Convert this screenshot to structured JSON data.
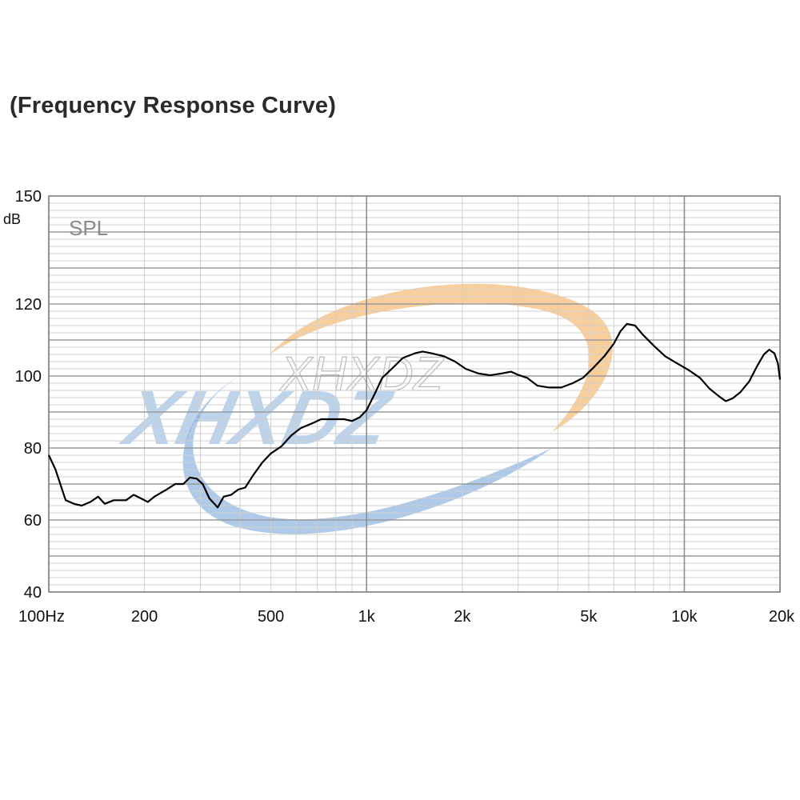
{
  "title": "(Frequency Response Curve)",
  "watermark": {
    "text": "XHXDZ",
    "color_blue": "#6e9fd6",
    "color_orange": "#f3a64a"
  },
  "chart_data": {
    "type": "line",
    "title": "(Frequency Response Curve)",
    "ylabel_unit": "dB",
    "series_label": "SPL",
    "xscale": "log",
    "xlim": [
      100,
      20000
    ],
    "ylim": [
      40,
      150
    ],
    "grid": true,
    "x_ticks": [
      {
        "value": 100,
        "label": "100Hz"
      },
      {
        "value": 200,
        "label": "200"
      },
      {
        "value": 500,
        "label": "500"
      },
      {
        "value": 1000,
        "label": "1k"
      },
      {
        "value": 2000,
        "label": "2k"
      },
      {
        "value": 5000,
        "label": "5k"
      },
      {
        "value": 10000,
        "label": "10k"
      },
      {
        "value": 20000,
        "label": "20k"
      }
    ],
    "y_ticks": [
      {
        "value": 150,
        "label": "150"
      },
      {
        "value": 120,
        "label": "120"
      },
      {
        "value": 100,
        "label": "100"
      },
      {
        "value": 80,
        "label": "80"
      },
      {
        "value": 60,
        "label": "60"
      },
      {
        "value": 40,
        "label": "40"
      }
    ],
    "line_color": "#000000",
    "series": [
      {
        "points": [
          [
            100,
            78
          ],
          [
            105,
            74
          ],
          [
            113,
            65.5
          ],
          [
            120,
            64.5
          ],
          [
            127,
            64
          ],
          [
            135,
            65
          ],
          [
            143,
            66.5
          ],
          [
            150,
            64.5
          ],
          [
            160,
            65.5
          ],
          [
            175,
            65.5
          ],
          [
            185,
            67
          ],
          [
            195,
            66
          ],
          [
            205,
            65
          ],
          [
            215,
            66.5
          ],
          [
            235,
            68.5
          ],
          [
            250,
            70
          ],
          [
            265,
            70
          ],
          [
            278,
            71.8
          ],
          [
            292,
            71.5
          ],
          [
            305,
            70
          ],
          [
            320,
            66
          ],
          [
            340,
            63.5
          ],
          [
            355,
            66.5
          ],
          [
            375,
            67
          ],
          [
            395,
            68.5
          ],
          [
            415,
            69
          ],
          [
            440,
            72.5
          ],
          [
            470,
            76
          ],
          [
            500,
            78.5
          ],
          [
            540,
            80.5
          ],
          [
            580,
            83.5
          ],
          [
            620,
            85.5
          ],
          [
            680,
            87
          ],
          [
            720,
            88
          ],
          [
            780,
            88
          ],
          [
            850,
            88
          ],
          [
            900,
            87.5
          ],
          [
            950,
            88.5
          ],
          [
            1000,
            90.5
          ],
          [
            1060,
            95
          ],
          [
            1120,
            99.5
          ],
          [
            1200,
            102
          ],
          [
            1300,
            105
          ],
          [
            1420,
            106.3
          ],
          [
            1500,
            106.8
          ],
          [
            1600,
            106.3
          ],
          [
            1750,
            105.5
          ],
          [
            1900,
            104
          ],
          [
            2050,
            102
          ],
          [
            2250,
            100.7
          ],
          [
            2450,
            100.2
          ],
          [
            2650,
            100.7
          ],
          [
            2850,
            101.2
          ],
          [
            3000,
            100.3
          ],
          [
            3200,
            99.5
          ],
          [
            3450,
            97.3
          ],
          [
            3750,
            96.8
          ],
          [
            4100,
            96.8
          ],
          [
            4450,
            98
          ],
          [
            4800,
            99.5
          ],
          [
            5200,
            102.5
          ],
          [
            5600,
            105.5
          ],
          [
            6000,
            109
          ],
          [
            6300,
            112.5
          ],
          [
            6600,
            114.5
          ],
          [
            7000,
            114
          ],
          [
            7400,
            111.5
          ],
          [
            8000,
            108.5
          ],
          [
            8700,
            105.5
          ],
          [
            9500,
            103.5
          ],
          [
            10300,
            101.7
          ],
          [
            11200,
            99.5
          ],
          [
            12000,
            96.5
          ],
          [
            12800,
            94.5
          ],
          [
            13500,
            93
          ],
          [
            14200,
            93.8
          ],
          [
            15000,
            95.5
          ],
          [
            16000,
            98.5
          ],
          [
            17000,
            103
          ],
          [
            17800,
            106
          ],
          [
            18500,
            107.3
          ],
          [
            19200,
            106.3
          ],
          [
            19700,
            103.5
          ],
          [
            20000,
            99
          ]
        ]
      }
    ]
  }
}
